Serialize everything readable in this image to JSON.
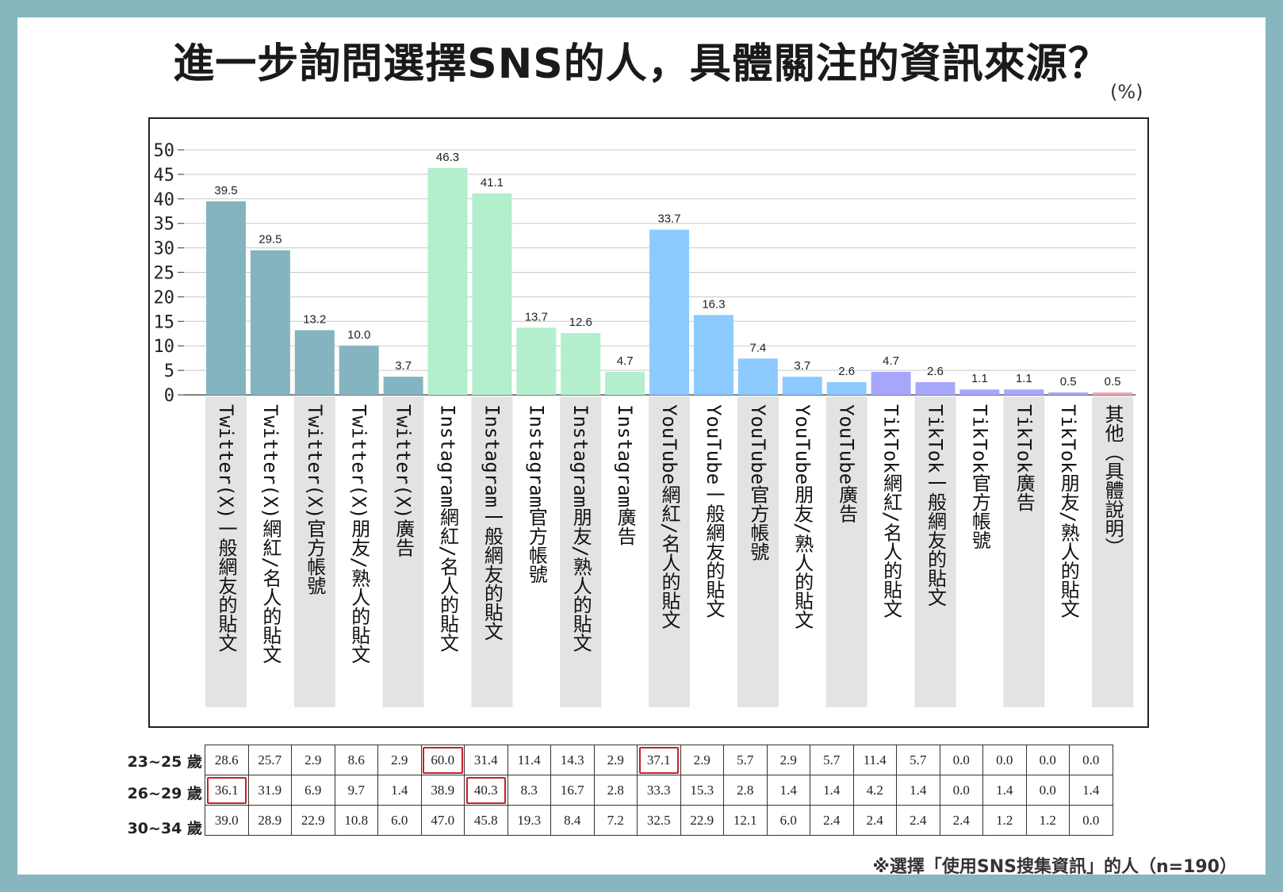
{
  "title": "進一步詢問選擇SNS的人，具體關注的資訊來源？",
  "unit": "(%)",
  "note": "※選擇「使用SNS搜集資訊」的人（n=190）",
  "colors": {
    "twitter": "#84b4bf",
    "instagram": "#b3efcd",
    "youtube": "#8ccaff",
    "tiktok": "#a6a7fb",
    "other": "#f2a6b3",
    "label_band": "#e3e3e3",
    "highlight": "#c8202a"
  },
  "chart_data": {
    "type": "bar",
    "ylim": [
      0,
      50
    ],
    "yticks": [
      "0",
      "5",
      "10",
      "15",
      "20",
      "25",
      "30",
      "35",
      "40",
      "45",
      "50"
    ],
    "grid": true,
    "categories": [
      "Twitter(X)一般網友的貼文",
      "Twitter(X)網紅/名人的貼文",
      "Twitter(X)官方帳號",
      "Twitter(X)朋友/熟人的貼文",
      "Twitter(X)廣告",
      "Instagram網紅/名人的貼文",
      "Instagram一般網友的貼文",
      "Instagram官方帳號",
      "Instagram朋友/熟人的貼文",
      "Instagram廣告",
      "YouTube網紅/名人的貼文",
      "YouTube一般網友的貼文",
      "YouTube官方帳號",
      "YouTube朋友/熟人的貼文",
      "YouTube廣告",
      "TikTok網紅/名人的貼文",
      "TikTok一般網友的貼文",
      "TikTok官方帳號",
      "TikTok廣告",
      "TikTok朋友/熟人的貼文",
      "其他（具體說明）"
    ],
    "groups": [
      "twitter",
      "twitter",
      "twitter",
      "twitter",
      "twitter",
      "instagram",
      "instagram",
      "instagram",
      "instagram",
      "instagram",
      "youtube",
      "youtube",
      "youtube",
      "youtube",
      "youtube",
      "tiktok",
      "tiktok",
      "tiktok",
      "tiktok",
      "tiktok",
      "other"
    ],
    "values": [
      39.5,
      29.5,
      13.2,
      10.0,
      3.7,
      46.3,
      41.1,
      13.7,
      12.6,
      4.7,
      33.7,
      16.3,
      7.4,
      3.7,
      2.6,
      4.7,
      2.6,
      1.1,
      1.1,
      0.5,
      0.5
    ],
    "value_labels": [
      "39.5",
      "29.5",
      "13.2",
      "10.0",
      "3.7",
      "46.3",
      "41.1",
      "13.7",
      "12.6",
      "4.7",
      "33.7",
      "16.3",
      "7.4",
      "3.7",
      "2.6",
      "4.7",
      "2.6",
      "1.1",
      "1.1",
      "0.5",
      "0.5"
    ],
    "bands": [
      true,
      false,
      true,
      false,
      true,
      false,
      true,
      false,
      true,
      false,
      true,
      false,
      true,
      false,
      true,
      false,
      true,
      false,
      true,
      false,
      true
    ]
  },
  "age_table": {
    "rows": [
      {
        "label": "23~25 歲",
        "values": [
          "28.6",
          "25.7",
          "2.9",
          "8.6",
          "2.9",
          "60.0",
          "31.4",
          "11.4",
          "14.3",
          "2.9",
          "37.1",
          "2.9",
          "5.7",
          "2.9",
          "5.7",
          "11.4",
          "5.7",
          "0.0",
          "0.0",
          "0.0",
          "0.0"
        ],
        "highlight": [
          5,
          10
        ]
      },
      {
        "label": "26~29 歲",
        "values": [
          "36.1",
          "31.9",
          "6.9",
          "9.7",
          "1.4",
          "38.9",
          "40.3",
          "8.3",
          "16.7",
          "2.8",
          "33.3",
          "15.3",
          "2.8",
          "1.4",
          "1.4",
          "4.2",
          "1.4",
          "0.0",
          "1.4",
          "0.0",
          "1.4"
        ],
        "highlight": [
          0,
          6
        ]
      },
      {
        "label": "30~34 歲",
        "values": [
          "39.0",
          "28.9",
          "22.9",
          "10.8",
          "6.0",
          "47.0",
          "45.8",
          "19.3",
          "8.4",
          "7.2",
          "32.5",
          "22.9",
          "12.1",
          "6.0",
          "2.4",
          "2.4",
          "2.4",
          "2.4",
          "1.2",
          "1.2",
          "0.0"
        ],
        "highlight": []
      }
    ]
  }
}
